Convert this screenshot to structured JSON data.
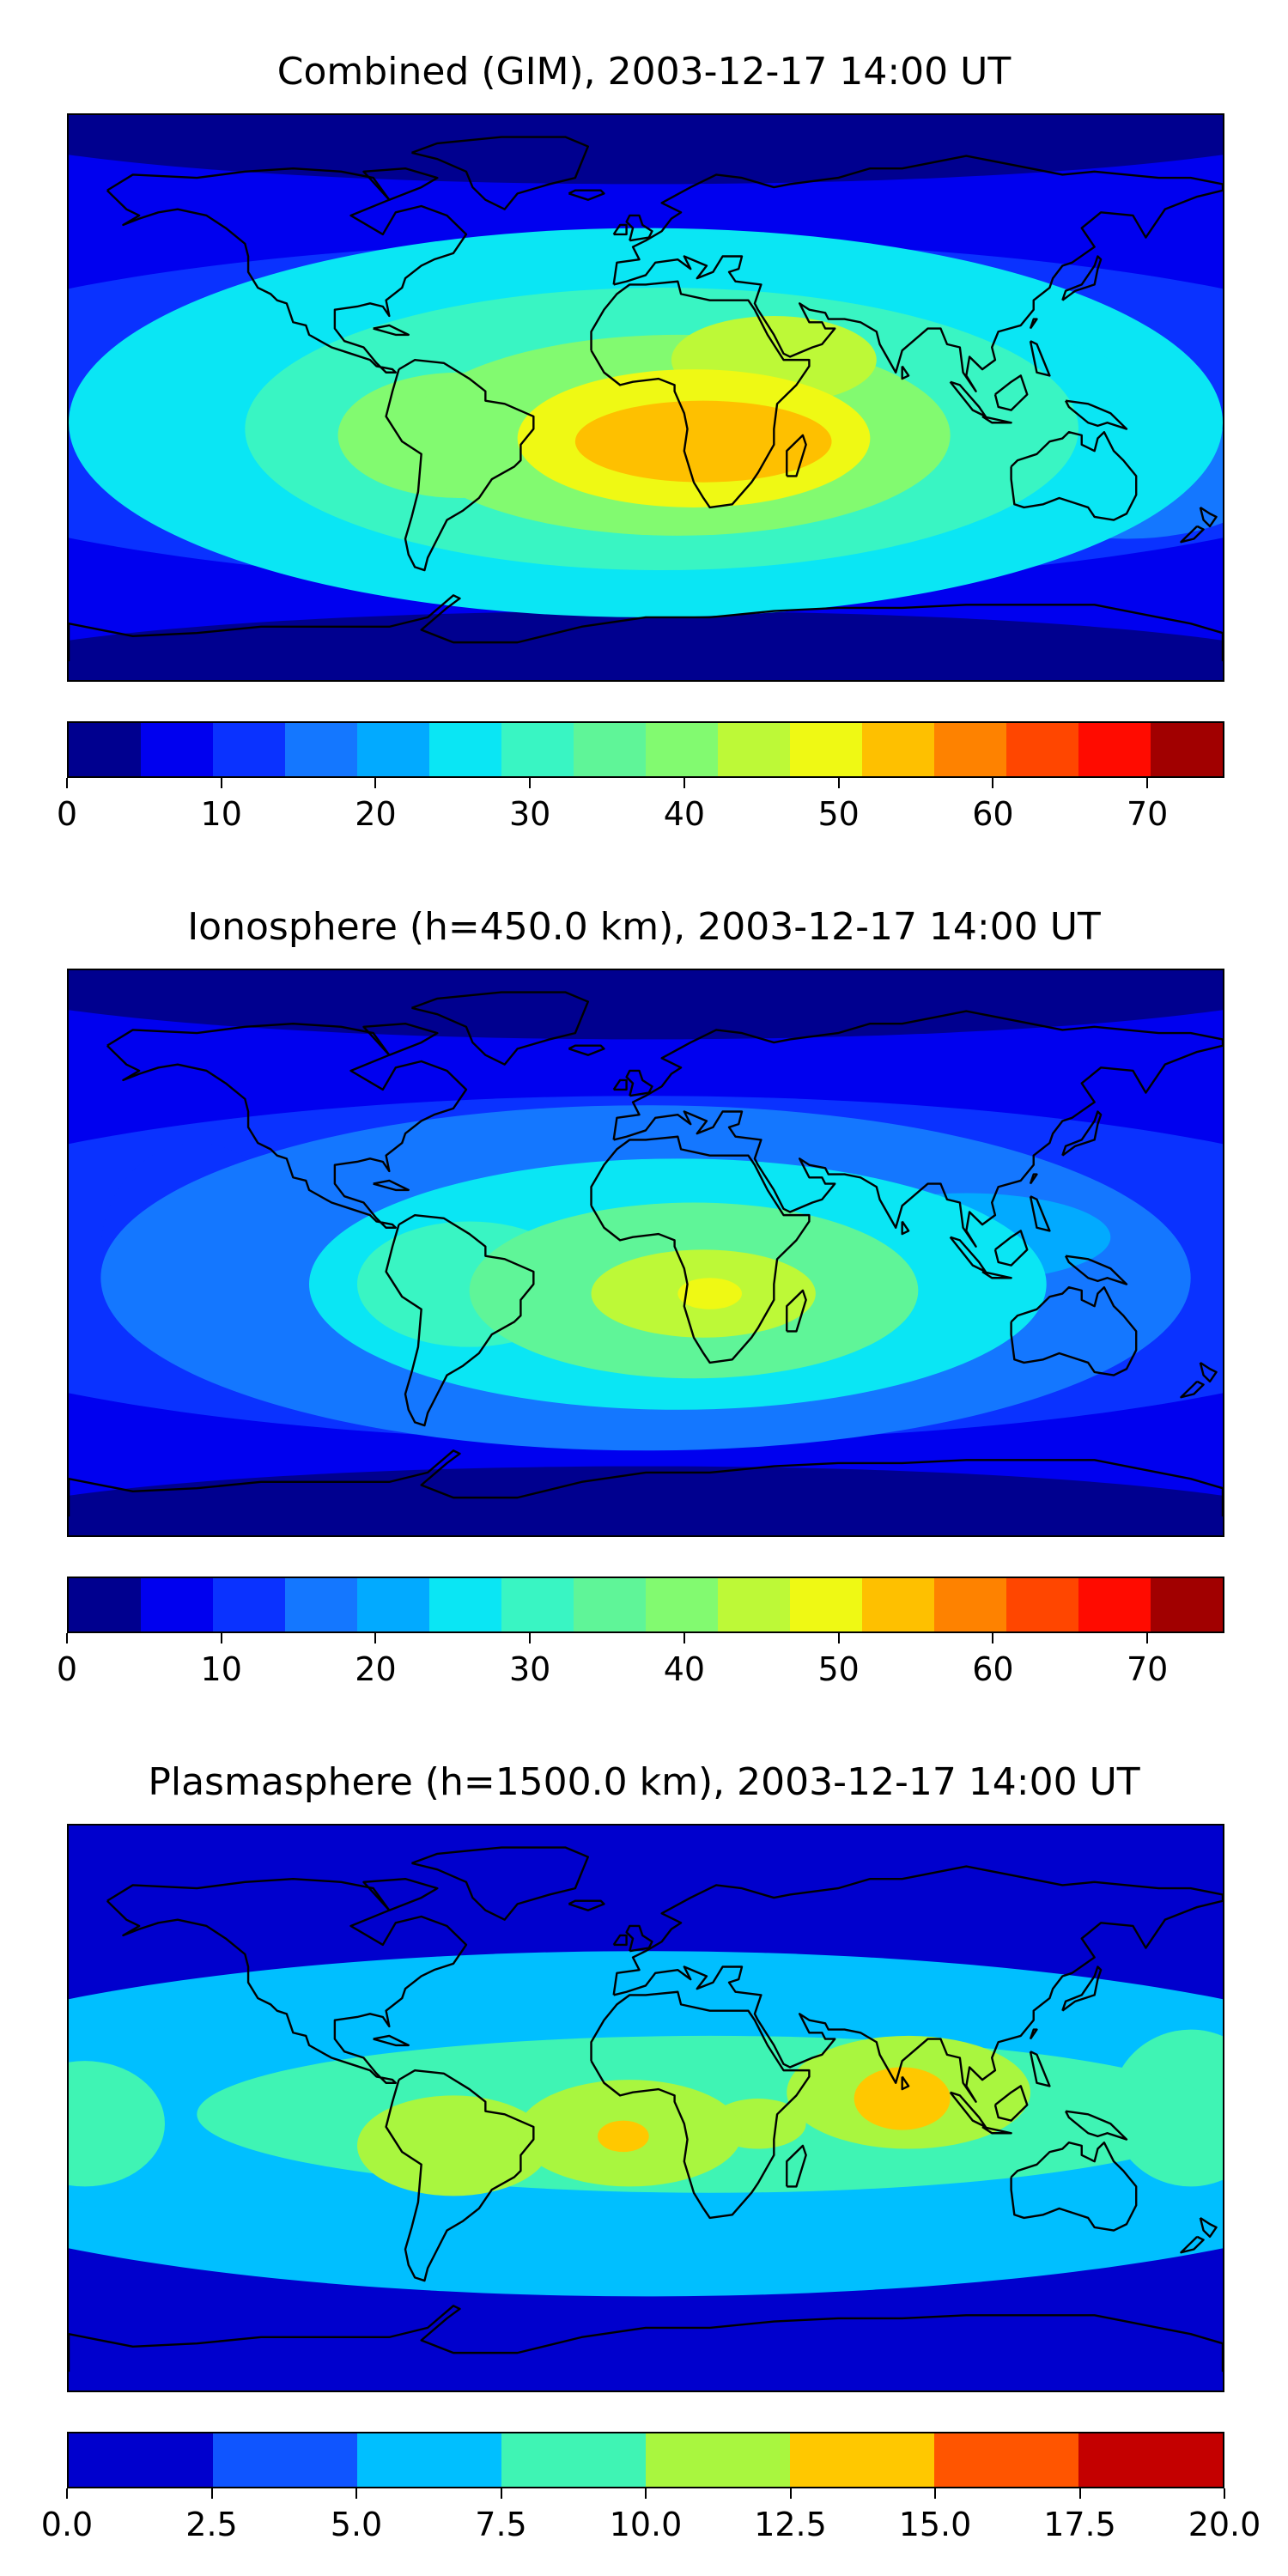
{
  "chart_data": [
    {
      "type": "heatmap",
      "title": "Combined (GIM), 2003-12-17 14:00 UT",
      "colorbar": {
        "levels": [
          0,
          5,
          10,
          15,
          20,
          25,
          30,
          35,
          40,
          45,
          50,
          55,
          60,
          65,
          70,
          75
        ],
        "tick_labels": [
          "0",
          "10",
          "20",
          "30",
          "40",
          "50",
          "60",
          "70"
        ],
        "tick_values": [
          0,
          10,
          20,
          30,
          40,
          50,
          60,
          70
        ],
        "colors": [
          "#00008f",
          "#0000ef",
          "#0a32ff",
          "#1477ff",
          "#02aaff",
          "#0ae6f4",
          "#39f5c3",
          "#5ff598",
          "#82fa70",
          "#bdf937",
          "#eff914",
          "#fec000",
          "#fe8200",
          "#ff4600",
          "#ff0b00",
          "#a10000"
        ]
      },
      "blobs": [
        {
          "lon": 0,
          "lat": -8,
          "value": 25,
          "rlon": 180,
          "rlat": 62
        },
        {
          "lon": 5,
          "lat": -10,
          "value": 33,
          "rlon": 130,
          "rlat": 45
        },
        {
          "lon": 10,
          "lat": -12,
          "value": 42,
          "rlon": 85,
          "rlat": 32
        },
        {
          "lon": 15,
          "lat": -13,
          "value": 52,
          "rlon": 55,
          "rlat": 22
        },
        {
          "lon": 18,
          "lat": -14,
          "value": 58,
          "rlon": 40,
          "rlat": 13
        },
        {
          "lon": -58,
          "lat": -12,
          "value": 40,
          "rlon": 38,
          "rlat": 20
        },
        {
          "lon": 40,
          "lat": 12,
          "value": 45,
          "rlon": 32,
          "rlat": 14
        },
        {
          "lon": 105,
          "lat": 5,
          "value": 28,
          "rlon": 45,
          "rlat": 15
        },
        {
          "lon": 150,
          "lat": -25,
          "value": 15,
          "rlon": 45,
          "rlat": 20
        },
        {
          "lon": -15,
          "lat": -50,
          "value": 15,
          "rlon": 100,
          "rlat": 14
        }
      ]
    },
    {
      "type": "heatmap",
      "title": "Ionosphere  (h=450.0 km), 2003-12-17 14:00 UT",
      "colorbar": {
        "levels": [
          0,
          5,
          10,
          15,
          20,
          25,
          30,
          35,
          40,
          45,
          50,
          55,
          60,
          65,
          70,
          75
        ],
        "tick_labels": [
          "0",
          "10",
          "20",
          "30",
          "40",
          "50",
          "60",
          "70"
        ],
        "tick_values": [
          0,
          10,
          20,
          30,
          40,
          50,
          60,
          70
        ],
        "colors": [
          "#00008f",
          "#0000ef",
          "#0a32ff",
          "#1477ff",
          "#02aaff",
          "#0ae6f4",
          "#39f5c3",
          "#5ff598",
          "#82fa70",
          "#bdf937",
          "#eff914",
          "#fec000",
          "#fe8200",
          "#ff4600",
          "#ff0b00",
          "#a10000"
        ]
      },
      "blobs": [
        {
          "lon": 0,
          "lat": -8,
          "value": 18,
          "rlon": 170,
          "rlat": 55
        },
        {
          "lon": 10,
          "lat": -10,
          "value": 26,
          "rlon": 115,
          "rlat": 40
        },
        {
          "lon": 15,
          "lat": -12,
          "value": 36,
          "rlon": 70,
          "rlat": 28
        },
        {
          "lon": 18,
          "lat": -13,
          "value": 46,
          "rlon": 35,
          "rlat": 14
        },
        {
          "lon": 20,
          "lat": -13,
          "value": 54,
          "rlon": 10,
          "rlat": 5
        },
        {
          "lon": -55,
          "lat": -10,
          "value": 30,
          "rlon": 35,
          "rlat": 20
        },
        {
          "lon": 100,
          "lat": 5,
          "value": 22,
          "rlon": 45,
          "rlat": 14
        },
        {
          "lon": -140,
          "lat": 0,
          "value": 14,
          "rlon": 30,
          "rlat": 35
        }
      ]
    },
    {
      "type": "heatmap",
      "title": "Plasmasphere (h=1500.0 km), 2003-12-17 14:00 UT",
      "colorbar": {
        "levels": [
          0,
          2.5,
          5,
          7.5,
          10,
          12.5,
          15,
          17.5,
          20
        ],
        "tick_labels": [
          "0.0",
          "2.5",
          "5.0",
          "7.5",
          "10.0",
          "12.5",
          "15.0",
          "17.5",
          "20.0"
        ],
        "tick_values": [
          0,
          2.5,
          5,
          7.5,
          10,
          12.5,
          15,
          17.5,
          20
        ],
        "colors": [
          "#0000cd",
          "#0f55ff",
          "#00bfff",
          "#3ff4b4",
          "#a9f63f",
          "#ffc800",
          "#ff5500",
          "#c40000"
        ]
      },
      "blobs": [
        {
          "lon": 0,
          "lat": -5,
          "value": 7.0,
          "rlon": 220,
          "rlat": 42
        },
        {
          "lon": 20,
          "lat": -2,
          "value": 9.5,
          "rlon": 160,
          "rlat": 25
        },
        {
          "lon": -60,
          "lat": -12,
          "value": 10.8,
          "rlon": 30,
          "rlat": 16
        },
        {
          "lon": -5,
          "lat": -8,
          "value": 11.3,
          "rlon": 35,
          "rlat": 17
        },
        {
          "lon": -7,
          "lat": -9,
          "value": 13.0,
          "rlon": 8,
          "rlat": 5
        },
        {
          "lon": 35,
          "lat": -5,
          "value": 10.5,
          "rlon": 15,
          "rlat": 8
        },
        {
          "lon": 82,
          "lat": 5,
          "value": 11.3,
          "rlon": 38,
          "rlat": 18
        },
        {
          "lon": 80,
          "lat": 3,
          "value": 13.2,
          "rlon": 15,
          "rlat": 10
        },
        {
          "lon": -175,
          "lat": -5,
          "value": 9.5,
          "rlon": 25,
          "rlat": 20
        },
        {
          "lon": 170,
          "lat": 0,
          "value": 8.5,
          "rlon": 25,
          "rlat": 25
        }
      ]
    }
  ]
}
